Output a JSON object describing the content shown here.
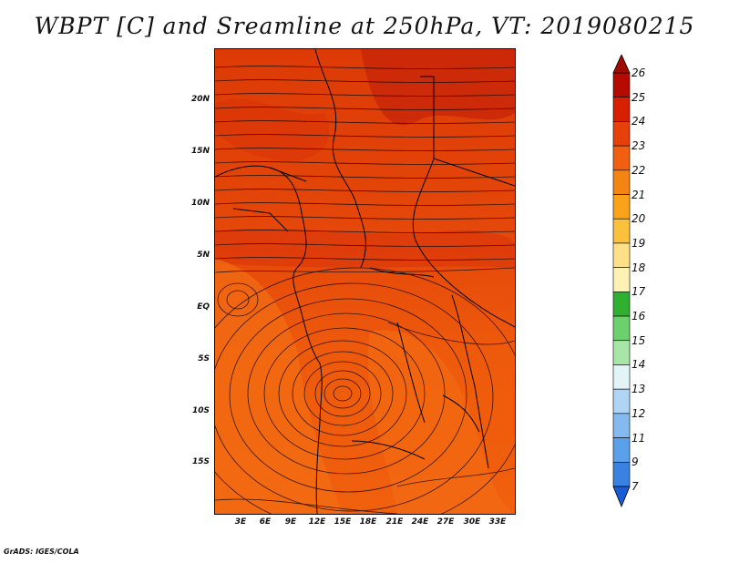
{
  "title": "WBPT [C] and Sreamline at 250hPa, VT: 2019080215",
  "footer": "GrADS: IGES/COLA",
  "map": {
    "lat_labels": [
      "20N",
      "15N",
      "10N",
      "5N",
      "EQ",
      "5S",
      "10S",
      "15S"
    ],
    "lon_labels": [
      "3E",
      "6E",
      "9E",
      "12E",
      "15E",
      "18E",
      "21E",
      "24E",
      "27E",
      "30E",
      "33E"
    ],
    "field": "wet-bulb potential temperature",
    "overlay": "streamlines"
  },
  "colorbar": {
    "labels": [
      "26",
      "25",
      "24",
      "23",
      "22",
      "21",
      "20",
      "19",
      "18",
      "17",
      "16",
      "15",
      "14",
      "13",
      "12",
      "11",
      "9",
      "7"
    ],
    "colors": [
      "#b40a00",
      "#d62000",
      "#e8400a",
      "#f06010",
      "#f58512",
      "#f9a21a",
      "#fbc03c",
      "#fde088",
      "#fdf2b4",
      "#30b030",
      "#6cd06c",
      "#a8e6a8",
      "#e2f4f6",
      "#b0d4f4",
      "#84baf0",
      "#5aa0ea",
      "#3a82e2",
      "#2066d8"
    ],
    "top_arrow_color": "#a00c00",
    "bottom_arrow_color": "#1a5cd6"
  }
}
